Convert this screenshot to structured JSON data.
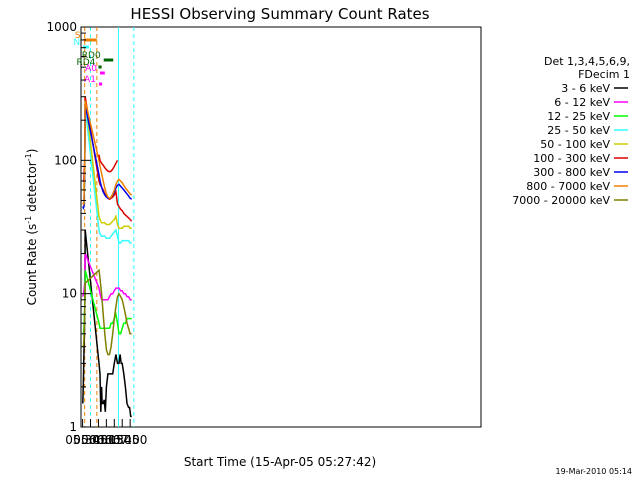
{
  "chart_data": {
    "type": "line",
    "title": "HESSI Observing Summary Count Rates",
    "xlabel": "Start Time (15-Apr-05 05:27:42)",
    "ylabel": "Count Rate (s",
    "ylabel_sup1": "-1",
    "ylabel_mid": " detector",
    "ylabel_sup2": "-1",
    "ylabel_end": ")",
    "y_scale": "log",
    "ylim": [
      1,
      1000
    ],
    "xlim_minutes": [
      327,
      1084
    ],
    "x_ticks": [
      {
        "m": 330,
        "label": "05:30"
      },
      {
        "m": 345,
        "label": "05:45"
      },
      {
        "m": 360,
        "label": "06:00"
      },
      {
        "m": 375,
        "label": "06:15"
      },
      {
        "m": 390,
        "label": "06:30"
      },
      {
        "m": 405,
        "label": "06:45"
      },
      {
        "m": 420,
        "label": "07:00"
      }
    ],
    "y_ticks": [
      {
        "v": 1,
        "label": "1"
      },
      {
        "v": 10,
        "label": "10"
      },
      {
        "v": 100,
        "label": "100"
      },
      {
        "v": 1000,
        "label": "1000"
      }
    ],
    "legend": {
      "title_line1": "Det 1,3,4,5,6,9,",
      "title_line2": "FDecim 1",
      "placement": "right",
      "entries": [
        {
          "label": "3 - 6 keV",
          "color": "#000000"
        },
        {
          "label": "6 - 12 keV",
          "color": "#ff00ff"
        },
        {
          "label": "12 - 25 keV",
          "color": "#00ff00"
        },
        {
          "label": "25 - 50 keV",
          "color": "#33ffff"
        },
        {
          "label": "50 - 100 keV",
          "color": "#cccc00"
        },
        {
          "label": "100 - 300 keV",
          "color": "#dd0000"
        },
        {
          "label": "300 - 800 keV",
          "color": "#0000ee"
        },
        {
          "label": "800 - 7000 keV",
          "color": "#ee8000"
        },
        {
          "label": "7000 - 20000 keV",
          "color": "#808000"
        }
      ]
    },
    "series": [
      {
        "name": "3 - 6 keV",
        "color": "#000000",
        "points": [
          [
            330.5,
            1.5
          ],
          [
            331.5,
            2.2
          ],
          [
            332.5,
            3.5
          ],
          [
            333.5,
            5
          ],
          [
            334.3,
            10
          ],
          [
            335,
            30
          ],
          [
            361,
            3
          ],
          [
            363,
            2.5
          ],
          [
            364.5,
            1.3
          ],
          [
            366,
            2
          ],
          [
            367,
            1.5
          ],
          [
            369,
            1.5
          ],
          [
            371,
            1.6
          ],
          [
            373,
            1.3
          ],
          [
            375,
            2
          ],
          [
            378,
            2.5
          ],
          [
            381,
            2.5
          ],
          [
            384,
            2.5
          ],
          [
            387,
            2.5
          ],
          [
            390,
            3
          ],
          [
            393,
            3.5
          ],
          [
            396,
            3
          ],
          [
            399,
            3
          ],
          [
            401,
            3.5
          ],
          [
            403,
            3
          ],
          [
            405,
            3
          ],
          [
            408,
            2.5
          ],
          [
            411,
            2
          ],
          [
            414,
            1.5
          ],
          [
            417,
            1.4
          ],
          [
            419,
            1.4
          ],
          [
            421,
            1.2
          ],
          [
            423,
            1.2
          ]
        ]
      },
      {
        "name": "6 - 12 keV",
        "color": "#ff00ff",
        "points": [
          [
            330.5,
            9.5
          ],
          [
            331.5,
            10
          ],
          [
            332.5,
            10.5
          ],
          [
            334,
            12
          ],
          [
            335,
            20
          ],
          [
            361,
            11
          ],
          [
            363,
            10
          ],
          [
            366,
            9
          ],
          [
            369,
            9
          ],
          [
            372,
            9
          ],
          [
            375,
            9
          ],
          [
            378,
            9
          ],
          [
            381,
            9.5
          ],
          [
            384,
            10
          ],
          [
            387,
            10
          ],
          [
            390,
            10.5
          ],
          [
            393,
            11
          ],
          [
            396,
            11
          ],
          [
            399,
            11
          ],
          [
            402,
            10.5
          ],
          [
            405,
            10.5
          ],
          [
            408,
            10
          ],
          [
            411,
            10
          ],
          [
            414,
            9.5
          ],
          [
            417,
            9.5
          ],
          [
            420,
            9
          ],
          [
            423,
            9
          ]
        ]
      },
      {
        "name": "12 - 25 keV",
        "color": "#00ff00",
        "points": [
          [
            330.5,
            5
          ],
          [
            331.5,
            5
          ],
          [
            332.5,
            5.5
          ],
          [
            334,
            8
          ],
          [
            335,
            15
          ],
          [
            361,
            6
          ],
          [
            363,
            5.5
          ],
          [
            366,
            5.5
          ],
          [
            369,
            5.5
          ],
          [
            372,
            5.5
          ],
          [
            375,
            5.5
          ],
          [
            378,
            5.5
          ],
          [
            381,
            5.5
          ],
          [
            384,
            6
          ],
          [
            387,
            6
          ],
          [
            390,
            6.5
          ],
          [
            393,
            7
          ],
          [
            396,
            6
          ],
          [
            399,
            5
          ],
          [
            402,
            5
          ],
          [
            405,
            5.5
          ],
          [
            408,
            6
          ],
          [
            411,
            6
          ],
          [
            414,
            6.5
          ],
          [
            417,
            6.5
          ],
          [
            420,
            6.5
          ],
          [
            423,
            6.5
          ]
        ]
      },
      {
        "name": "25 - 50 keV",
        "color": "#33ffff",
        "points": [
          [
            330.5,
            45
          ],
          [
            331.5,
            44
          ],
          [
            332.5,
            45
          ],
          [
            334,
            70
          ],
          [
            335,
            250
          ],
          [
            361,
            30
          ],
          [
            363,
            28
          ],
          [
            366,
            27
          ],
          [
            369,
            27
          ],
          [
            372,
            27
          ],
          [
            375,
            26
          ],
          [
            378,
            26
          ],
          [
            381,
            26
          ],
          [
            384,
            27
          ],
          [
            387,
            28
          ],
          [
            390,
            29
          ],
          [
            393,
            30
          ],
          [
            396,
            27
          ],
          [
            399,
            24
          ],
          [
            402,
            24
          ],
          [
            405,
            25
          ],
          [
            408,
            25
          ],
          [
            411,
            25
          ],
          [
            414,
            25
          ],
          [
            417,
            25
          ],
          [
            420,
            24
          ],
          [
            423,
            24
          ]
        ]
      },
      {
        "name": "50 - 100 keV",
        "color": "#cccc00",
        "points": [
          [
            330.5,
            60
          ],
          [
            331.5,
            60
          ],
          [
            332.5,
            62
          ],
          [
            334,
            95
          ],
          [
            335,
            300
          ],
          [
            361,
            38
          ],
          [
            363,
            36
          ],
          [
            366,
            34
          ],
          [
            369,
            34
          ],
          [
            372,
            34
          ],
          [
            375,
            33
          ],
          [
            378,
            33
          ],
          [
            381,
            33
          ],
          [
            384,
            34
          ],
          [
            387,
            35
          ],
          [
            390,
            36
          ],
          [
            393,
            38
          ],
          [
            396,
            33
          ],
          [
            399,
            31
          ],
          [
            402,
            31
          ],
          [
            405,
            31
          ],
          [
            408,
            32
          ],
          [
            411,
            32
          ],
          [
            414,
            32
          ],
          [
            417,
            32
          ],
          [
            420,
            31
          ],
          [
            423,
            31
          ]
        ]
      },
      {
        "name": "100 - 300 keV",
        "color": "#dd0000",
        "points": [
          [
            330.5,
            70
          ],
          [
            331.5,
            70
          ],
          [
            332.5,
            72
          ],
          [
            334,
            100
          ],
          [
            335,
            300
          ],
          [
            361,
            70
          ],
          [
            363,
            66
          ],
          [
            366,
            63
          ],
          [
            369,
            60
          ],
          [
            372,
            56
          ],
          [
            375,
            54
          ],
          [
            378,
            52
          ],
          [
            381,
            51
          ],
          [
            384,
            52
          ],
          [
            387,
            53
          ],
          [
            390,
            55
          ],
          [
            393,
            58
          ],
          [
            396,
            47
          ],
          [
            399,
            45
          ],
          [
            402,
            43
          ],
          [
            405,
            42
          ],
          [
            408,
            40
          ],
          [
            411,
            39
          ],
          [
            414,
            38
          ],
          [
            417,
            37
          ],
          [
            420,
            36
          ],
          [
            423,
            35
          ]
        ]
      },
      {
        "name": "300 - 800 keV",
        "color": "#0000ee",
        "points": [
          [
            330.5,
            45
          ],
          [
            331.5,
            44
          ],
          [
            332.5,
            45
          ],
          [
            334,
            80
          ],
          [
            335,
            260
          ],
          [
            361,
            78
          ],
          [
            363,
            70
          ],
          [
            366,
            63
          ],
          [
            369,
            58
          ],
          [
            372,
            55
          ],
          [
            375,
            53
          ],
          [
            378,
            52
          ],
          [
            381,
            52
          ],
          [
            384,
            53
          ],
          [
            387,
            55
          ],
          [
            390,
            58
          ],
          [
            393,
            62
          ],
          [
            396,
            65
          ],
          [
            399,
            66
          ],
          [
            402,
            64
          ],
          [
            405,
            62
          ],
          [
            408,
            60
          ],
          [
            411,
            58
          ],
          [
            414,
            56
          ],
          [
            417,
            54
          ],
          [
            420,
            52
          ],
          [
            423,
            51
          ]
        ]
      },
      {
        "name": "800 - 7000 keV",
        "color": "#ee8000",
        "points": [
          [
            330.5,
            48
          ],
          [
            331.5,
            47
          ],
          [
            332.5,
            48
          ],
          [
            334,
            85
          ],
          [
            335,
            280
          ],
          [
            361,
            100
          ],
          [
            363,
            90
          ],
          [
            366,
            80
          ],
          [
            369,
            70
          ],
          [
            372,
            62
          ],
          [
            375,
            56
          ],
          [
            378,
            53
          ],
          [
            381,
            52
          ],
          [
            384,
            53
          ],
          [
            387,
            56
          ],
          [
            390,
            60
          ],
          [
            393,
            66
          ],
          [
            396,
            70
          ],
          [
            399,
            72
          ],
          [
            402,
            70
          ],
          [
            405,
            68
          ],
          [
            408,
            65
          ],
          [
            411,
            62
          ],
          [
            414,
            60
          ],
          [
            417,
            58
          ],
          [
            420,
            56
          ],
          [
            423,
            55
          ]
        ]
      },
      {
        "name": "7000 - 20000 keV",
        "color": "#808000",
        "points": [
          [
            330.5,
            4
          ],
          [
            331.5,
            4
          ],
          [
            332.5,
            4.5
          ],
          [
            334,
            7
          ],
          [
            335,
            12
          ],
          [
            361,
            15
          ],
          [
            363,
            13
          ],
          [
            366,
            10
          ],
          [
            369,
            7
          ],
          [
            372,
            5
          ],
          [
            375,
            3.8
          ],
          [
            378,
            3.5
          ],
          [
            381,
            3.5
          ],
          [
            384,
            4
          ],
          [
            387,
            5
          ],
          [
            390,
            6.5
          ],
          [
            393,
            8
          ],
          [
            396,
            9.5
          ],
          [
            399,
            10
          ],
          [
            402,
            9.5
          ],
          [
            405,
            9
          ],
          [
            408,
            8
          ],
          [
            411,
            7
          ],
          [
            414,
            6
          ],
          [
            417,
            5.5
          ],
          [
            420,
            5
          ],
          [
            423,
            5
          ]
        ]
      },
      {
        "name": "100 - 300 keV",
        "color": "#dd0000",
        "points": [
          [
            361,
            110
          ],
          [
            363,
            100
          ],
          [
            366,
            95
          ],
          [
            369,
            92
          ],
          [
            372,
            88
          ],
          [
            375,
            85
          ],
          [
            378,
            83
          ],
          [
            381,
            82
          ],
          [
            384,
            83
          ],
          [
            387,
            86
          ],
          [
            390,
            90
          ],
          [
            393,
            95
          ],
          [
            396,
            100
          ]
        ]
      }
    ],
    "flag_bars": [
      {
        "label": "S",
        "color": "#ee8000",
        "start": 332,
        "end": 357
      },
      {
        "label": "N",
        "color": "#33ffff",
        "start": 331,
        "end": 342
      },
      {
        "label": "RD0",
        "color": "#006400",
        "start": 370,
        "end": 388
      },
      {
        "label": "RD4",
        "color": "#006400",
        "start": 360,
        "end": 366
      },
      {
        "label": "A0",
        "color": "#ff00ff",
        "start": 363,
        "end": 372
      },
      {
        "label": "A1",
        "color": "#ff00ff",
        "start": 361,
        "end": 367
      }
    ],
    "timestamp": "19-Mar-2010 05:14"
  }
}
